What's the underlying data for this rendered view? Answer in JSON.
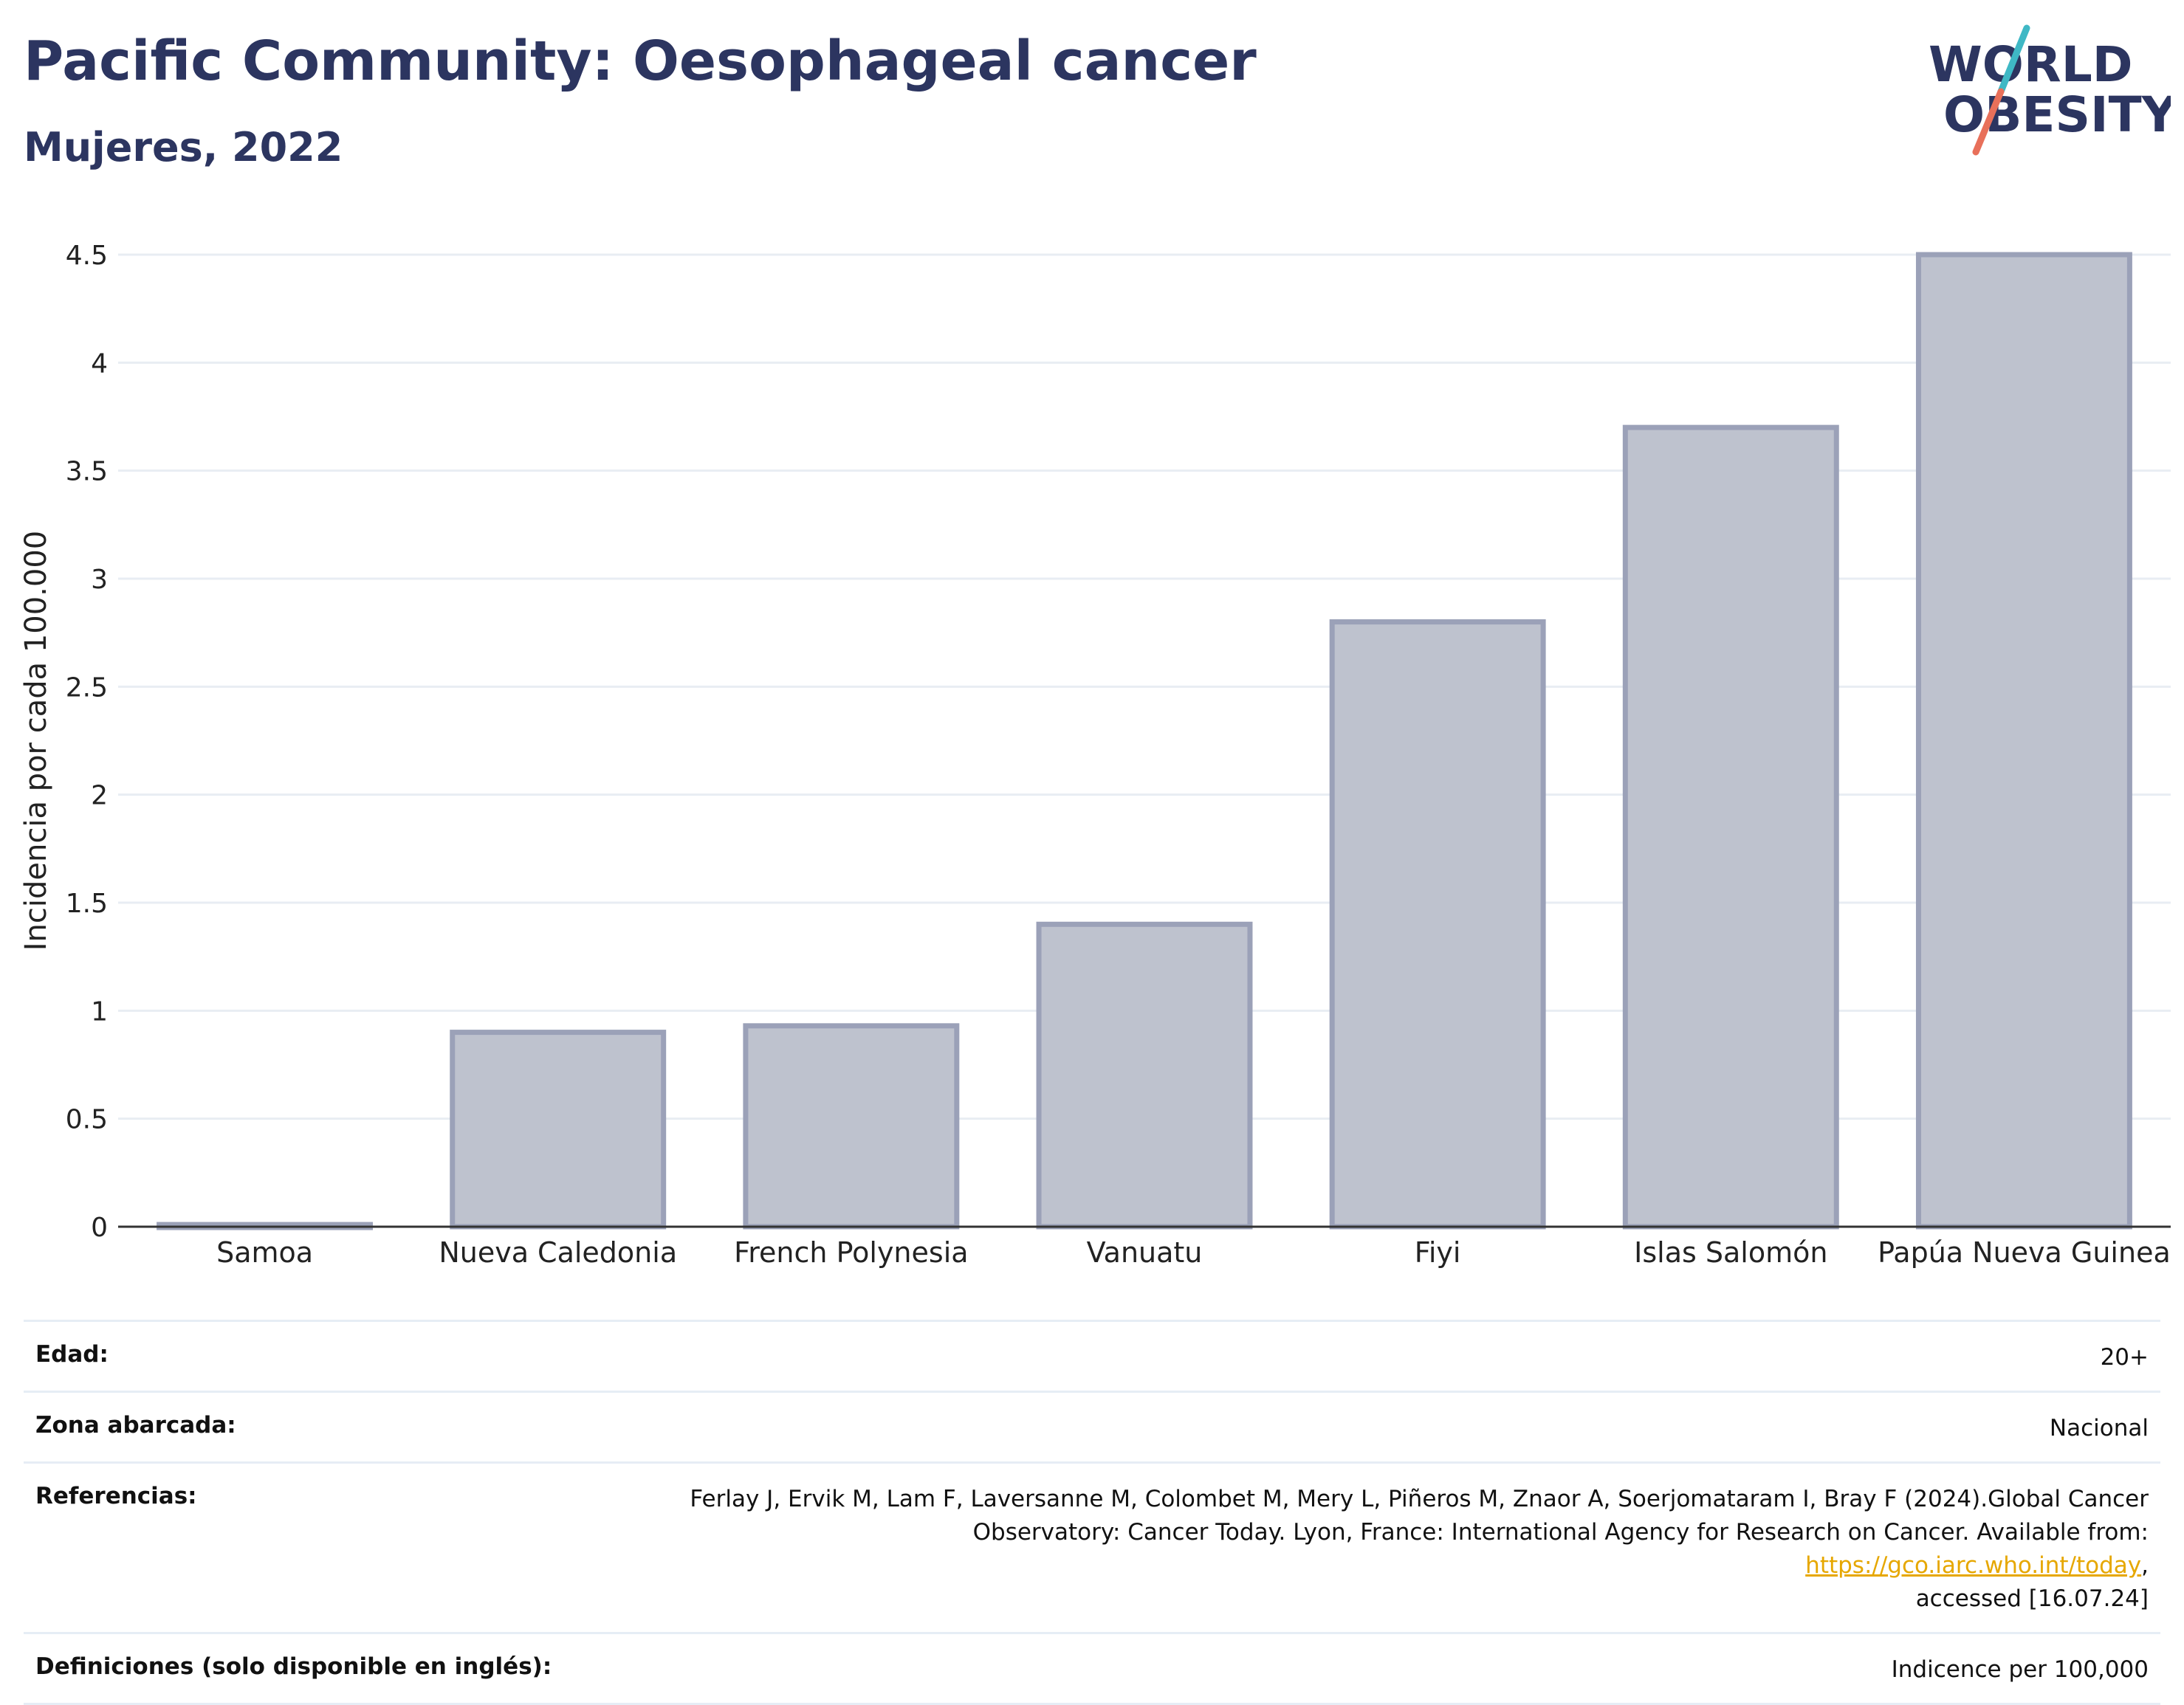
{
  "header": {
    "title": "Pacific Community: Oesophageal cancer",
    "subtitle": "Mujeres, 2022"
  },
  "logo": {
    "line1": "WORLD",
    "line2": "OBESITY",
    "colors": {
      "text": "#2c3560",
      "slash_top": "#3fb8c5",
      "slash_bottom": "#e8705a"
    }
  },
  "chart_data": {
    "type": "bar",
    "categories": [
      "Samoa",
      "Nueva Caledonia",
      "French Polynesia",
      "Vanuatu",
      "Fiyi",
      "Islas Salomón",
      "Papúa Nueva Guinea"
    ],
    "values": [
      0.01,
      0.9,
      0.93,
      1.4,
      2.8,
      3.7,
      4.5
    ],
    "ylabel": "Incidencia por cada 100.000",
    "xlabel": "",
    "ylim": [
      0,
      4.5
    ],
    "yticks": [
      0,
      0.5,
      1,
      1.5,
      2,
      2.5,
      3,
      3.5,
      4,
      4.5
    ],
    "ytick_labels": [
      "0",
      "0.5",
      "1",
      "1.5",
      "2",
      "2.5",
      "3",
      "3.5",
      "4",
      "4.5"
    ],
    "grid": true,
    "colors": {
      "bar_fill": "#bec2ce",
      "bar_stroke": "#9ba1b8",
      "grid": "#e8edf3",
      "axis": "#333333"
    }
  },
  "meta": {
    "rows": [
      {
        "label": "Edad:",
        "value": "20+"
      },
      {
        "label": "Zona abarcada:",
        "value": "Nacional"
      },
      {
        "label": "Referencias:",
        "line1": "Ferlay J, Ervik M, Lam F, Laversanne M, Colombet M, Mery L, Piñeros M, Znaor A, Soerjomataram I, Bray F (2024).Global Cancer",
        "line2": "Observatory: Cancer Today. Lyon, France: International Agency for Research on Cancer. Available from: ",
        "link": "https://gco.iarc.who.int/today",
        "line2_end": ",",
        "line3": "accessed [16.07.24]"
      },
      {
        "label": "Definiciones (solo disponible en inglés):",
        "value": "Indicence per 100,000"
      }
    ]
  }
}
